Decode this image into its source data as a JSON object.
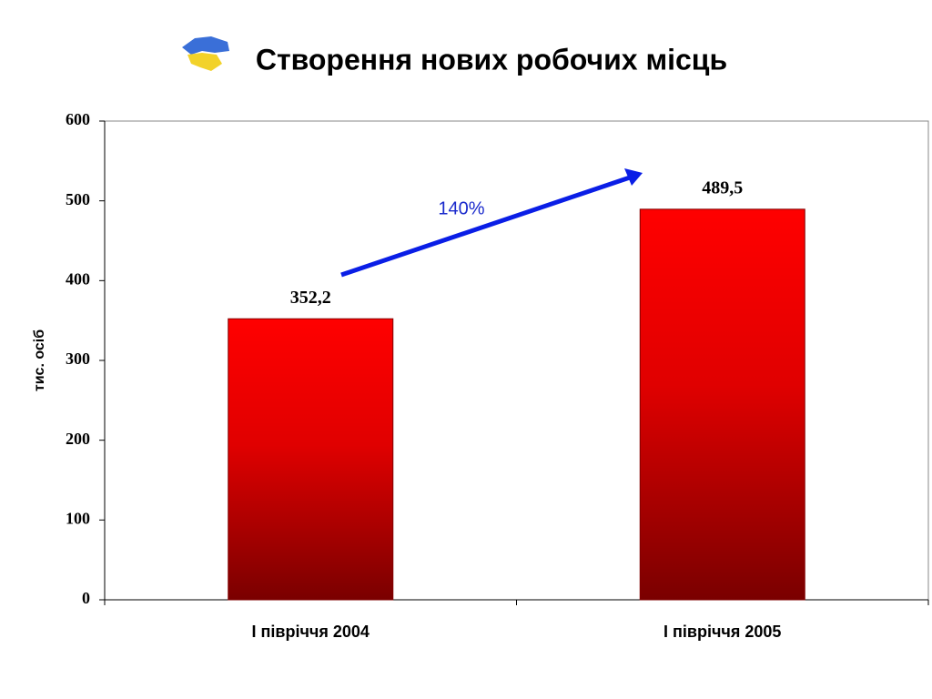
{
  "chart_data": {
    "type": "bar",
    "title": "Створення нових робочих місць",
    "y_label": "тис. осіб",
    "annotation": "140%",
    "categories": [
      "І півріччя 2004",
      "І півріччя 2005"
    ],
    "values": [
      352.2,
      489.5
    ],
    "value_labels": [
      "352,2",
      "489,5"
    ],
    "color": "#ff0000",
    "ylim": [
      0,
      600
    ],
    "yticks": [
      0,
      100,
      200,
      300,
      400,
      500,
      600
    ],
    "grid": false
  }
}
